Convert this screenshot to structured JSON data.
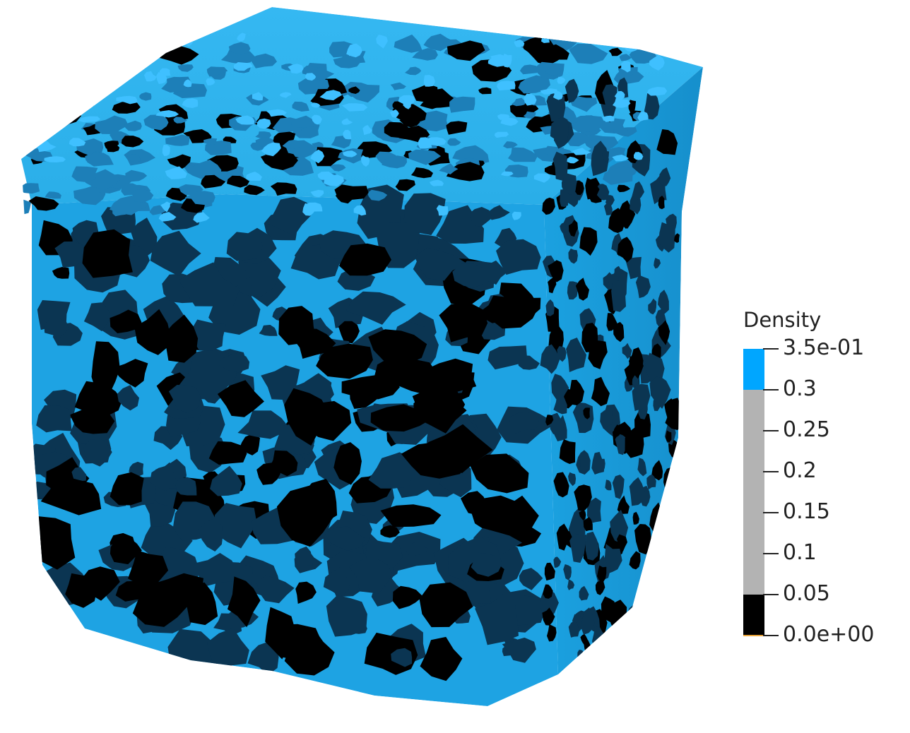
{
  "legend": {
    "title": "Density",
    "ticks": [
      "3.5e-01",
      "0.3",
      "0.25",
      "0.2",
      "0.15",
      "0.1",
      "0.05",
      "0.0e+00"
    ],
    "segments": [
      {
        "from": 0.3,
        "to": 0.35,
        "color": "#00a6ff"
      },
      {
        "from": 0.05,
        "to": 0.3,
        "color": "#b3b3b3"
      },
      {
        "from": 0.0,
        "to": 0.05,
        "color": "#000000"
      }
    ],
    "range": [
      0,
      0.35
    ]
  },
  "colors": {
    "solid": "#1ea8e8",
    "solid_light": "#3fc0ff",
    "pore_shadow": "#0b3552",
    "void": "#000000",
    "background": "#ffffff"
  }
}
